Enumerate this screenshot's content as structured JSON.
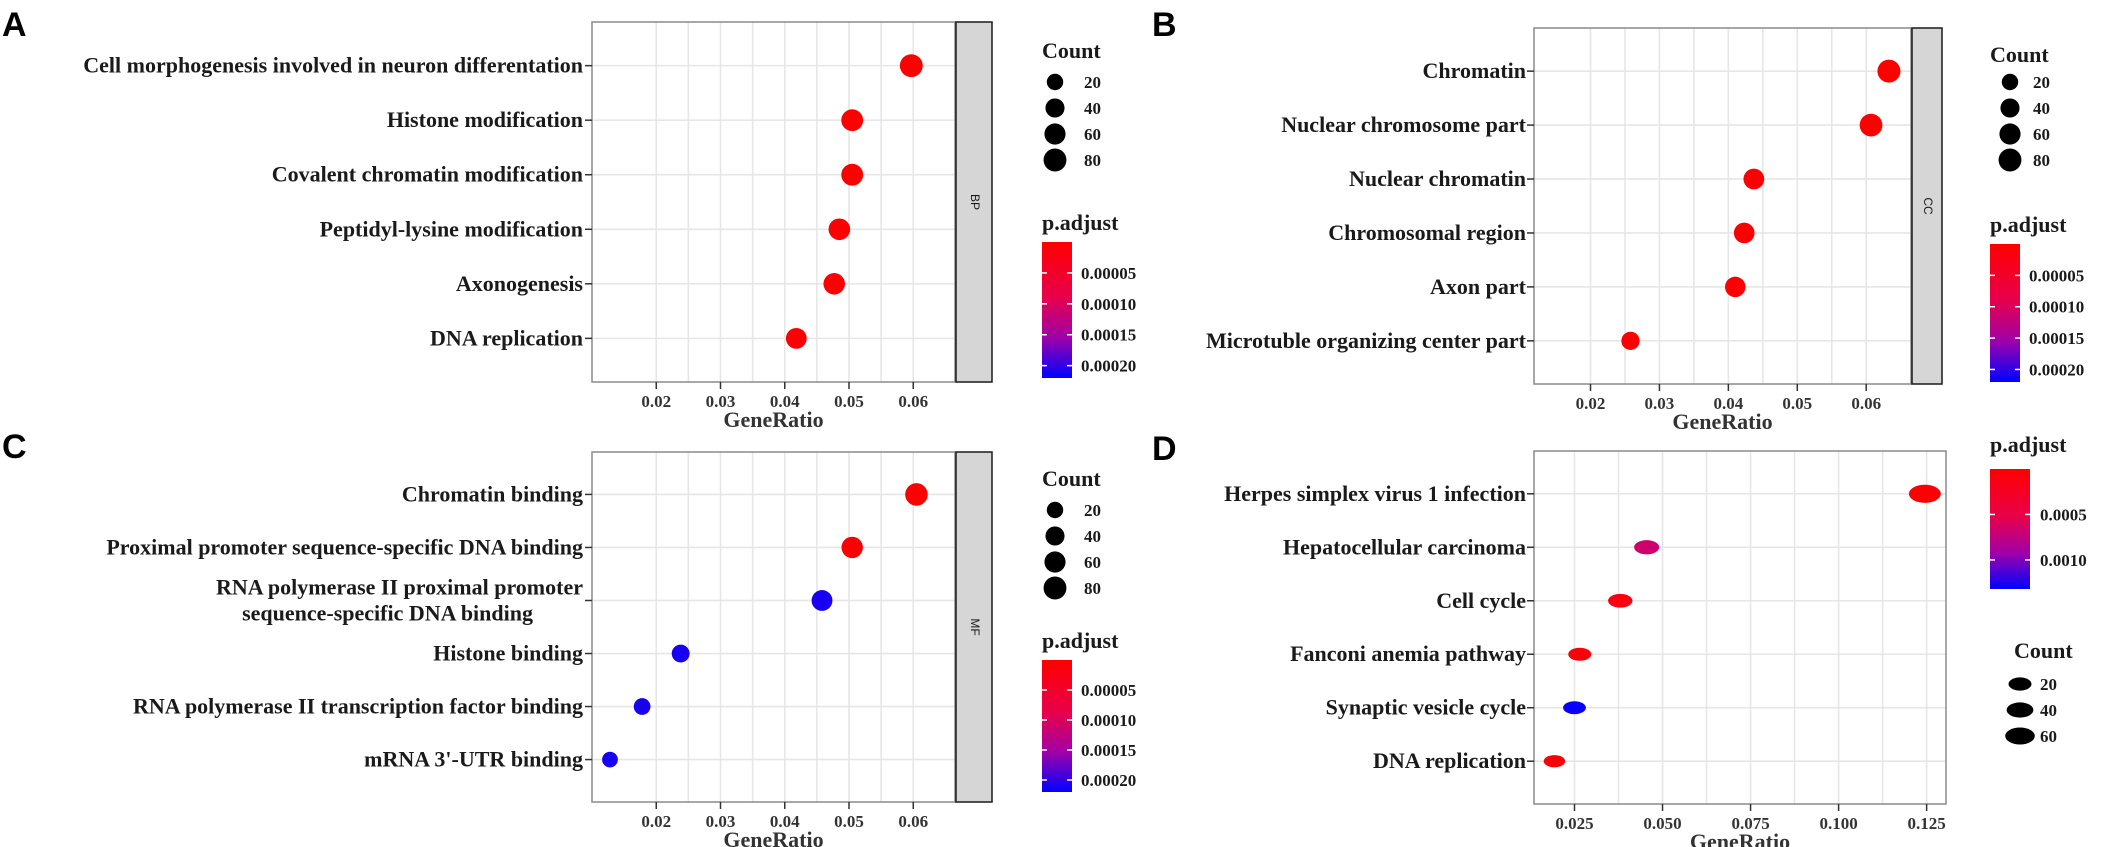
{
  "chart_data": [
    {
      "panel": "A",
      "type": "scatter",
      "facet": "BP",
      "xlabel": "GeneRatio",
      "xticks": [
        0.02,
        0.03,
        0.04,
        0.05,
        0.06
      ],
      "xticklabels": [
        "0.02",
        "0.03",
        "0.04",
        "0.05",
        "0.06"
      ],
      "xlim": [
        0.01,
        0.0665
      ],
      "categories": [
        "Cell morphogenesis involved in neuron differentation",
        "Histone modification",
        "Covalent chromatin modification",
        "Peptidyl-lysine modification",
        "Axonogenesis",
        "DNA replication"
      ],
      "points": [
        {
          "gene_ratio": 0.0597,
          "count": 80,
          "p_adjust": 1e-06
        },
        {
          "gene_ratio": 0.0505,
          "count": 68,
          "p_adjust": 1e-06
        },
        {
          "gene_ratio": 0.0505,
          "count": 68,
          "p_adjust": 1e-06
        },
        {
          "gene_ratio": 0.0485,
          "count": 65,
          "p_adjust": 2e-06
        },
        {
          "gene_ratio": 0.0477,
          "count": 64,
          "p_adjust": 2e-06
        },
        {
          "gene_ratio": 0.0418,
          "count": 56,
          "p_adjust": 3e-06
        }
      ],
      "count_legend": {
        "title": "Count",
        "values": [
          20,
          40,
          60,
          80
        ],
        "labels": [
          "20",
          "40",
          "60",
          "80"
        ]
      },
      "color_legend": {
        "title": "p.adjust",
        "ticks": [
          5e-05,
          0.0001,
          0.00015,
          0.0002
        ],
        "tick_labels": [
          "0.00005",
          "0.00010",
          "0.00015",
          "0.00020"
        ],
        "range": [
          0.0,
          0.00022
        ],
        "low_color": "#ff0000",
        "high_color": "#0000ff"
      }
    },
    {
      "panel": "B",
      "type": "scatter",
      "facet": "CC",
      "xlabel": "GeneRatio",
      "xticks": [
        0.02,
        0.03,
        0.04,
        0.05,
        0.06
      ],
      "xticklabels": [
        "0.02",
        "0.03",
        "0.04",
        "0.05",
        "0.06"
      ],
      "xlim": [
        0.0118,
        0.0665
      ],
      "categories": [
        "Chromatin",
        "Nuclear chromosome part",
        "Nuclear chromatin",
        "Chromosomal region",
        "Axon part",
        "Microtuble organizing center part"
      ],
      "points": [
        {
          "gene_ratio": 0.0633,
          "count": 82,
          "p_adjust": 1e-06
        },
        {
          "gene_ratio": 0.0607,
          "count": 78,
          "p_adjust": 1e-06
        },
        {
          "gene_ratio": 0.0437,
          "count": 56,
          "p_adjust": 2e-06
        },
        {
          "gene_ratio": 0.0423,
          "count": 55,
          "p_adjust": 2e-06
        },
        {
          "gene_ratio": 0.041,
          "count": 53,
          "p_adjust": 2e-06
        },
        {
          "gene_ratio": 0.0258,
          "count": 33,
          "p_adjust": 4e-06
        }
      ],
      "count_legend": {
        "title": "Count",
        "values": [
          20,
          40,
          60,
          80
        ],
        "labels": [
          "20",
          "40",
          "60",
          "80"
        ]
      },
      "color_legend": {
        "title": "p.adjust",
        "ticks": [
          5e-05,
          0.0001,
          0.00015,
          0.0002
        ],
        "tick_labels": [
          "0.00005",
          "0.00010",
          "0.00015",
          "0.00020"
        ],
        "range": [
          0.0,
          0.00022
        ],
        "low_color": "#ff0000",
        "high_color": "#0000ff"
      }
    },
    {
      "panel": "C",
      "type": "scatter",
      "facet": "MF",
      "xlabel": "GeneRatio",
      "xticks": [
        0.02,
        0.03,
        0.04,
        0.05,
        0.06
      ],
      "xticklabels": [
        "0.02",
        "0.03",
        "0.04",
        "0.05",
        "0.06"
      ],
      "xlim": [
        0.01,
        0.0665
      ],
      "categories": [
        "Chromatin binding",
        "Proximal promoter sequence-specific DNA binding",
        "RNA polymerase II proximal promoter sequence-specific DNA binding",
        "Histone binding",
        "RNA polymerase II transcription factor binding",
        "mRNA 3'-UTR binding"
      ],
      "category_display": [
        [
          "Chromatin binding"
        ],
        [
          "Proximal promoter sequence-specific DNA binding"
        ],
        [
          "RNA polymerase II proximal promoter",
          "sequence-specific DNA binding"
        ],
        [
          "Histone binding"
        ],
        [
          "RNA polymerase II transcription factor binding"
        ],
        [
          "mRNA 3'-UTR binding"
        ]
      ],
      "points": [
        {
          "gene_ratio": 0.0605,
          "count": 76,
          "p_adjust": 1e-06
        },
        {
          "gene_ratio": 0.0505,
          "count": 63,
          "p_adjust": 3e-06
        },
        {
          "gene_ratio": 0.0458,
          "count": 57,
          "p_adjust": 0.00021
        },
        {
          "gene_ratio": 0.0238,
          "count": 30,
          "p_adjust": 0.00021
        },
        {
          "gene_ratio": 0.0178,
          "count": 22,
          "p_adjust": 0.00021
        },
        {
          "gene_ratio": 0.0128,
          "count": 16,
          "p_adjust": 0.00021
        }
      ],
      "count_legend": {
        "title": "Count",
        "values": [
          20,
          40,
          60,
          80
        ],
        "labels": [
          "20",
          "40",
          "60",
          "80"
        ]
      },
      "color_legend": {
        "title": "p.adjust",
        "ticks": [
          5e-05,
          0.0001,
          0.00015,
          0.0002
        ],
        "tick_labels": [
          "0.00005",
          "0.00010",
          "0.00015",
          "0.00020"
        ],
        "range": [
          0.0,
          0.00022
        ],
        "low_color": "#ff0000",
        "high_color": "#0000ff"
      }
    },
    {
      "panel": "D",
      "type": "scatter",
      "facet": "",
      "xlabel": "GeneRatio",
      "xticks": [
        0.025,
        0.05,
        0.075,
        0.1,
        0.125
      ],
      "xticklabels": [
        "0.025",
        "0.050",
        "0.075",
        "0.100",
        "0.125"
      ],
      "xlim": [
        0.0135,
        0.1305
      ],
      "categories": [
        "Herpes simplex virus 1 infection",
        "Hepatocellular carcinoma",
        "Cell cycle",
        "Fanconi anemia pathway",
        "Synaptic vesicle cycle",
        "DNA replication"
      ],
      "points": [
        {
          "gene_ratio": 0.1245,
          "count": 62,
          "p_adjust": 2e-05
        },
        {
          "gene_ratio": 0.0455,
          "count": 22,
          "p_adjust": 0.00067
        },
        {
          "gene_ratio": 0.038,
          "count": 19,
          "p_adjust": 0.00012
        },
        {
          "gene_ratio": 0.0265,
          "count": 14,
          "p_adjust": 6e-05
        },
        {
          "gene_ratio": 0.025,
          "count": 13,
          "p_adjust": 0.0013
        },
        {
          "gene_ratio": 0.0193,
          "count": 9,
          "p_adjust": 4e-05
        }
      ],
      "count_legend": {
        "title": "Count",
        "values": [
          20,
          40,
          60
        ],
        "labels": [
          "20",
          "40",
          "60"
        ]
      },
      "color_legend": {
        "title": "p.adjust",
        "ticks": [
          0.0005,
          0.001
        ],
        "tick_labels": [
          "0.0005",
          "0.0010"
        ],
        "range": [
          0.0,
          0.00132
        ],
        "low_color": "#ff0000",
        "high_color": "#0000ff"
      }
    }
  ]
}
